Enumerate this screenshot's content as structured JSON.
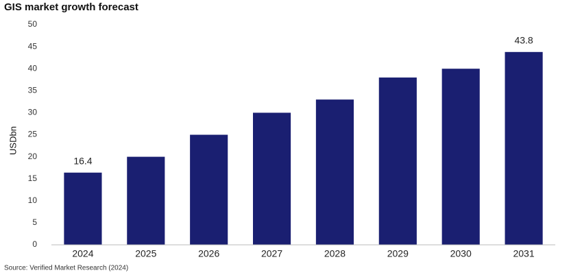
{
  "chart_data": {
    "type": "bar",
    "title": "GIS market growth forecast",
    "y_label": "USDbn",
    "source": "Source: Verified Market Research (2024)",
    "categories": [
      "2024",
      "2025",
      "2026",
      "2027",
      "2028",
      "2029",
      "2030",
      "2031"
    ],
    "values": [
      16.4,
      20,
      25,
      30,
      33,
      38,
      40,
      43.8
    ],
    "value_labels": [
      "16.4",
      null,
      null,
      null,
      null,
      null,
      null,
      "43.8"
    ],
    "color": "#1a1f71",
    "ylim": [
      0,
      50
    ],
    "yticks": [
      0,
      5,
      10,
      15,
      20,
      25,
      30,
      35,
      40,
      45,
      50
    ],
    "grid": false
  }
}
